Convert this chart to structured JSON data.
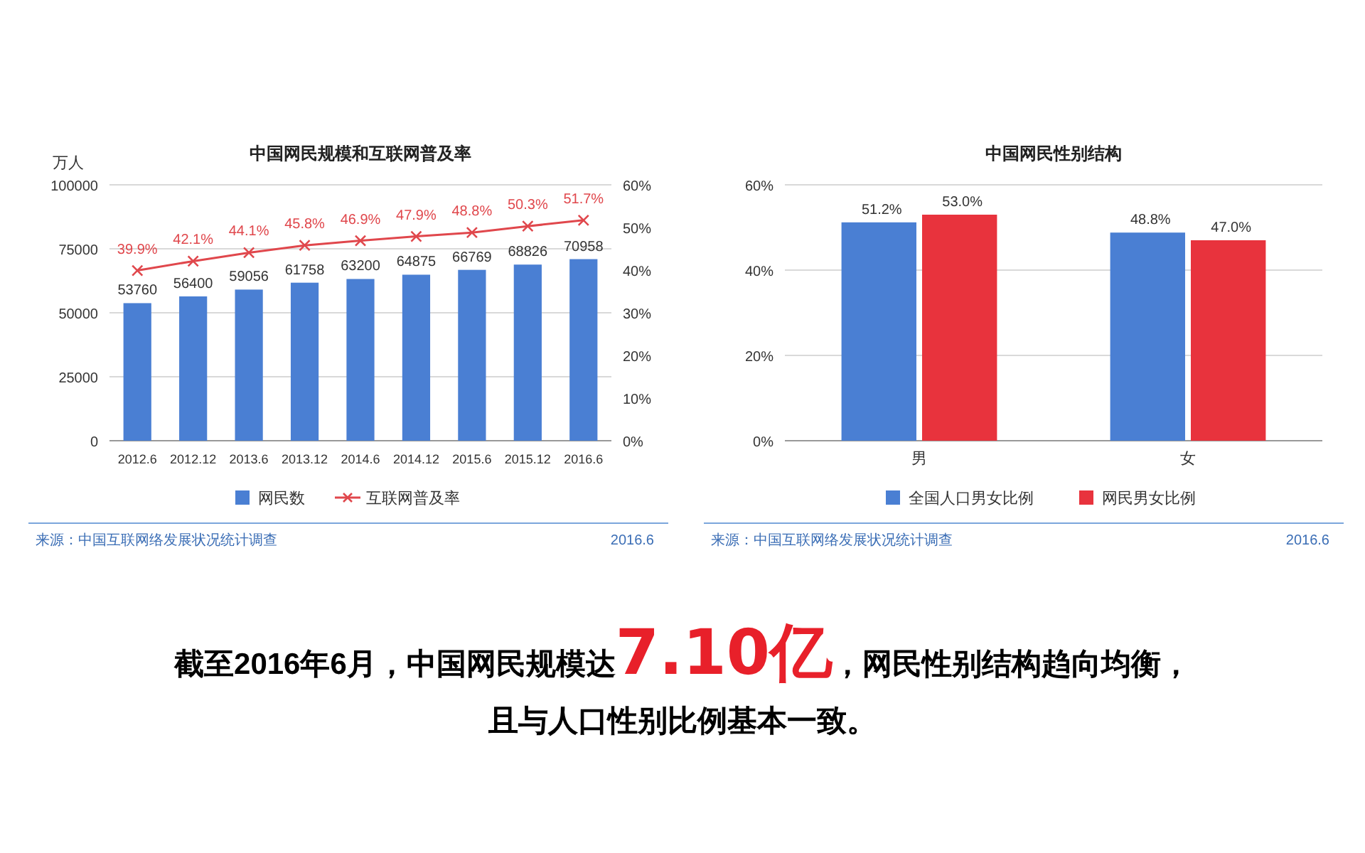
{
  "chart_data": [
    {
      "type": "bar",
      "title": "中国网民规模和互联网普及率",
      "ylabel": "万人",
      "categories": [
        "2012.6",
        "2012.12",
        "2013.6",
        "2013.12",
        "2014.6",
        "2014.12",
        "2015.6",
        "2015.12",
        "2016.6"
      ],
      "series": [
        {
          "name": "网民数",
          "type": "bar",
          "color": "#4a7fd3",
          "values": [
            53760,
            56400,
            59056,
            61758,
            63200,
            64875,
            66769,
            68826,
            70958
          ],
          "value_labels": [
            "53760",
            "56400",
            "59056",
            "61758",
            "63200",
            "64875",
            "66769",
            "68826",
            "70958"
          ]
        },
        {
          "name": "互联网普及率",
          "type": "line",
          "axis": "y2",
          "marker": "cross",
          "color": "#e0474c",
          "values": [
            39.9,
            42.1,
            44.1,
            45.8,
            46.9,
            47.9,
            48.8,
            50.3,
            51.7
          ],
          "value_labels": [
            "39.9%",
            "42.1%",
            "44.1%",
            "45.8%",
            "46.9%",
            "47.9%",
            "48.8%",
            "50.3%",
            "51.7%"
          ]
        }
      ],
      "ylim": [
        0,
        100000
      ],
      "yticks": [
        0,
        25000,
        50000,
        75000,
        100000
      ],
      "y2lim": [
        0,
        60
      ],
      "y2ticks": [
        {
          "value": 0,
          "label": "0%"
        },
        {
          "value": 10,
          "label": "10%"
        },
        {
          "value": 20,
          "label": "20%"
        },
        {
          "value": 30,
          "label": "30%"
        },
        {
          "value": 40,
          "label": "40%"
        },
        {
          "value": 50,
          "label": "50%"
        },
        {
          "value": 60,
          "label": "60%"
        }
      ],
      "grid": "y",
      "legend": "bottom",
      "annotations": [
        "来源：中国互联网络发展状况统计调查",
        "2016.6"
      ]
    },
    {
      "type": "bar",
      "title": "中国网民性别结构",
      "categories": [
        "男",
        "女"
      ],
      "series": [
        {
          "name": "全国人口男女比例",
          "color": "#4a7fd3",
          "values": [
            51.2,
            48.8
          ],
          "value_labels": [
            "51.2%",
            "48.8%"
          ]
        },
        {
          "name": "网民男女比例",
          "color": "#e8333d",
          "values": [
            53.0,
            47.0
          ],
          "value_labels": [
            "53.0%",
            "47.0%"
          ]
        }
      ],
      "ylim": [
        0,
        60
      ],
      "yticks": [
        {
          "value": 0,
          "label": "0%"
        },
        {
          "value": 20,
          "label": "20%"
        },
        {
          "value": 40,
          "label": "40%"
        },
        {
          "value": 60,
          "label": "60%"
        }
      ],
      "grid": "y",
      "legend": "bottom",
      "annotations": [
        "来源：中国互联网络发展状况统计调查",
        "2016.6"
      ]
    },
    {
      "type": "other",
      "annotations": [
        "截至2016年6月，中国网民规模达",
        "7.10亿",
        "，网民性别结构趋向均衡，",
        "且与人口性别比例基本一致。"
      ]
    }
  ]
}
